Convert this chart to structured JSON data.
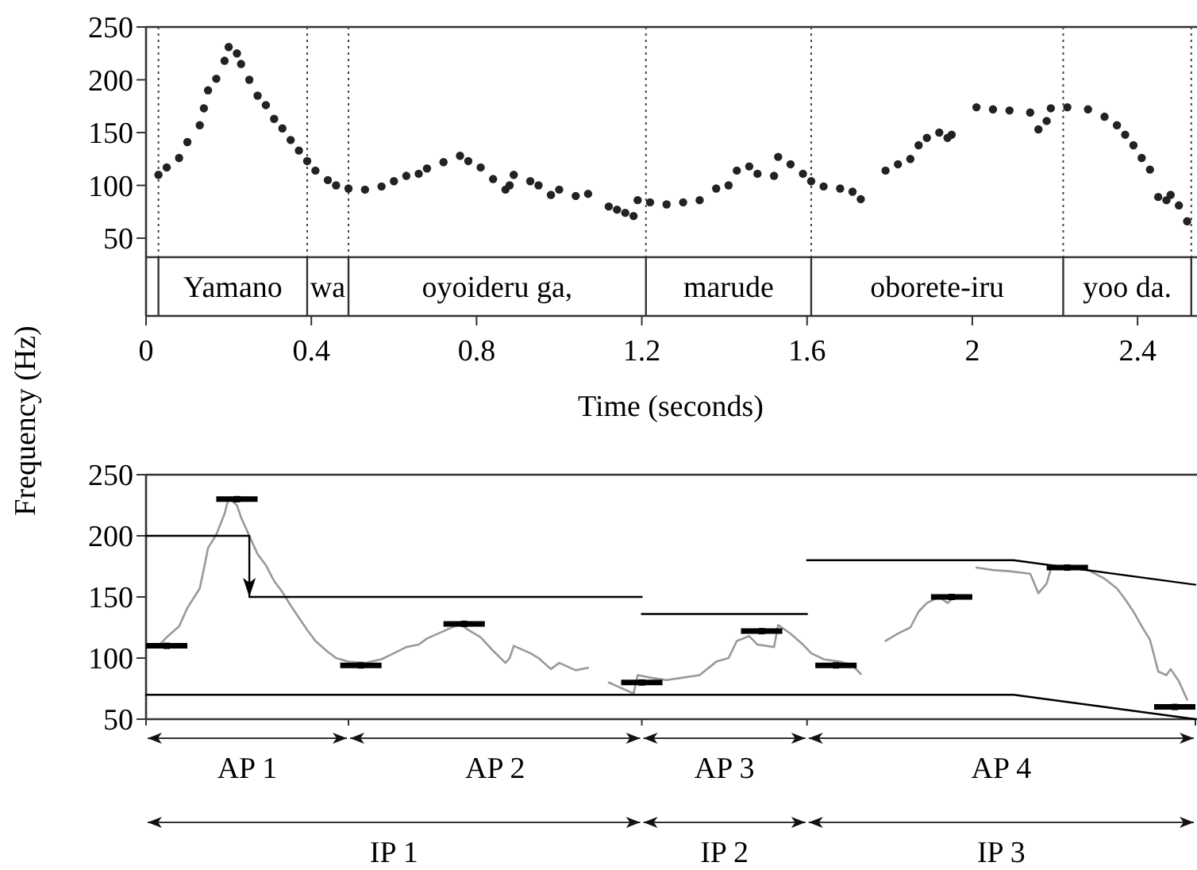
{
  "chart_data": [
    {
      "type": "scatter",
      "xlabel": "Time (seconds)",
      "ylabel": "Frequency (Hz)",
      "xlim": [
        0,
        2.54
      ],
      "ylim": [
        32,
        250
      ],
      "xticks": [
        0,
        0.4,
        0.8,
        1.2,
        1.6,
        2,
        2.4
      ],
      "yticks": [
        50,
        100,
        150,
        200,
        250
      ],
      "marker": "circle",
      "x": [
        0.03,
        0.05,
        0.08,
        0.1,
        0.13,
        0.14,
        0.15,
        0.17,
        0.19,
        0.2,
        0.22,
        0.23,
        0.25,
        0.27,
        0.29,
        0.31,
        0.33,
        0.35,
        0.37,
        0.39,
        0.41,
        0.44,
        0.46,
        0.49,
        0.53,
        0.57,
        0.6,
        0.63,
        0.66,
        0.68,
        0.72,
        0.76,
        0.78,
        0.81,
        0.84,
        0.87,
        0.88,
        0.89,
        0.93,
        0.95,
        0.98,
        1.0,
        1.04,
        1.07,
        1.12,
        1.14,
        1.16,
        1.18,
        1.19,
        1.22,
        1.26,
        1.3,
        1.34,
        1.38,
        1.41,
        1.43,
        1.46,
        1.48,
        1.52,
        1.53,
        1.56,
        1.59,
        1.61,
        1.64,
        1.68,
        1.71,
        1.73,
        1.79,
        1.82,
        1.85,
        1.87,
        1.89,
        1.92,
        1.94,
        1.95,
        2.01,
        2.05,
        2.09,
        2.14,
        2.16,
        2.18,
        2.19,
        2.23,
        2.28,
        2.32,
        2.35,
        2.37,
        2.39,
        2.41,
        2.43,
        2.45,
        2.47,
        2.48,
        2.5,
        2.52
      ],
      "series": [
        {
          "color": "#222222",
          "values": [
            110,
            117,
            126,
            141,
            157,
            173,
            190,
            201,
            218,
            231,
            225,
            215,
            200,
            185,
            176,
            163,
            154,
            143,
            133,
            123,
            114,
            105,
            100,
            97,
            96,
            99,
            104,
            109,
            111,
            116,
            122,
            128,
            123,
            117,
            106,
            96,
            100,
            110,
            104,
            100,
            91,
            96,
            90,
            92,
            80,
            77,
            74,
            71,
            86,
            84,
            82,
            84,
            86,
            97,
            100,
            114,
            118,
            111,
            109,
            127,
            120,
            111,
            104,
            99,
            97,
            94,
            87,
            114,
            120,
            125,
            138,
            145,
            150,
            145,
            148,
            174,
            172,
            171,
            169,
            153,
            161,
            173,
            174,
            172,
            165,
            157,
            148,
            138,
            126,
            115,
            89,
            86,
            91,
            81,
            66
          ]
        }
      ],
      "ref_lines": [
        {
          "axis": "x",
          "value": 0.03,
          "line_style": "dotted"
        },
        {
          "axis": "x",
          "value": 0.39,
          "line_style": "dotted"
        },
        {
          "axis": "x",
          "value": 0.49,
          "line_style": "dotted"
        },
        {
          "axis": "x",
          "value": 1.21,
          "line_style": "dotted"
        },
        {
          "axis": "x",
          "value": 1.61,
          "line_style": "dotted"
        },
        {
          "axis": "x",
          "value": 2.22,
          "line_style": "dotted"
        },
        {
          "axis": "x",
          "value": 2.53,
          "line_style": "dotted"
        }
      ],
      "annotations": [
        "Yamano",
        "wa",
        "oyoideru ga,",
        "marude",
        "oborete-iru",
        "yoo da."
      ]
    },
    {
      "type": "line",
      "xlim": [
        0,
        2.54
      ],
      "ylim": [
        50,
        250
      ],
      "xticks": [
        {
          "value": 0,
          "label": null
        },
        {
          "value": 0.49,
          "label": null
        },
        {
          "value": 1.2,
          "label": null
        },
        {
          "value": 1.6,
          "label": null
        },
        {
          "value": 2.54,
          "label": null
        }
      ],
      "yticks": [
        50,
        100,
        150,
        200,
        250
      ],
      "tick_labels": "y",
      "series": [
        {
          "color": "#999999",
          "x": [
            0.03,
            0.05,
            0.08,
            0.1,
            0.13,
            0.14,
            0.15,
            0.17,
            0.19,
            0.2,
            0.22,
            0.23,
            0.25,
            0.27,
            0.29,
            0.31,
            0.33,
            0.35,
            0.37,
            0.39,
            0.41,
            0.44,
            0.46,
            0.49,
            0.53,
            0.57,
            0.6,
            0.63,
            0.66,
            0.68,
            0.72,
            0.76,
            0.78,
            0.81,
            0.84,
            0.87,
            0.88,
            0.89,
            0.93,
            0.95,
            0.98,
            1.0,
            1.04,
            1.07
          ],
          "values": [
            110,
            117,
            126,
            141,
            157,
            173,
            190,
            201,
            218,
            231,
            225,
            215,
            200,
            185,
            176,
            163,
            154,
            143,
            133,
            123,
            114,
            105,
            100,
            97,
            96,
            99,
            104,
            109,
            111,
            116,
            122,
            128,
            123,
            117,
            106,
            96,
            100,
            110,
            104,
            100,
            91,
            96,
            90,
            92
          ]
        },
        {
          "color": "#999999",
          "x": [
            1.12,
            1.14,
            1.16,
            1.18,
            1.19,
            1.22,
            1.26,
            1.3,
            1.34,
            1.38,
            1.41,
            1.43,
            1.46,
            1.48,
            1.52,
            1.53,
            1.56,
            1.59,
            1.61,
            1.64,
            1.68,
            1.71,
            1.73
          ],
          "values": [
            80,
            77,
            74,
            71,
            86,
            84,
            82,
            84,
            86,
            97,
            100,
            114,
            118,
            111,
            109,
            127,
            120,
            111,
            104,
            99,
            97,
            94,
            87
          ]
        },
        {
          "color": "#999999",
          "x": [
            1.79,
            1.82,
            1.85,
            1.87,
            1.89,
            1.92,
            1.94,
            1.95
          ],
          "values": [
            114,
            120,
            125,
            138,
            145,
            150,
            145,
            148
          ]
        },
        {
          "color": "#999999",
          "x": [
            2.01,
            2.05,
            2.09,
            2.14,
            2.16,
            2.18,
            2.19,
            2.23,
            2.28,
            2.32,
            2.35,
            2.37,
            2.39,
            2.41,
            2.43,
            2.45,
            2.47,
            2.48,
            2.5,
            2.52
          ],
          "values": [
            174,
            172,
            171,
            169,
            153,
            161,
            173,
            174,
            172,
            165,
            157,
            148,
            138,
            126,
            115,
            89,
            86,
            91,
            81,
            66
          ]
        },
        {
          "color": "#000000",
          "x": [
            0,
            0.25,
            0.25,
            1.2
          ],
          "values": [
            200,
            200,
            150,
            150
          ]
        },
        {
          "color": "#000000",
          "x": [
            1.2,
            1.6
          ],
          "values": [
            136,
            136
          ]
        },
        {
          "color": "#000000",
          "x": [
            1.6,
            2.1,
            2.54
          ],
          "values": [
            180,
            180,
            160
          ]
        },
        {
          "color": "#000000",
          "x": [
            0,
            2.1,
            2.54
          ],
          "values": [
            70,
            70,
            50
          ]
        },
        {
          "type": "scatter",
          "marker": "square",
          "color": "#000000",
          "x": [
            0.05,
            0.22,
            0.52,
            0.77,
            1.2,
            1.49,
            1.67,
            1.95,
            2.23,
            2.49
          ],
          "values": [
            110,
            230,
            94,
            128,
            80,
            122,
            94,
            150,
            174,
            60
          ],
          "xerrors": [
            0.05,
            0.05,
            0.05,
            0.05,
            0.05,
            0.05,
            0.05,
            0.05,
            0.05,
            0.05
          ]
        }
      ],
      "annotations": [
        "AP 1",
        "AP 2",
        "AP 3",
        "AP 4",
        "IP 1",
        "IP 2",
        "IP 3"
      ]
    }
  ]
}
